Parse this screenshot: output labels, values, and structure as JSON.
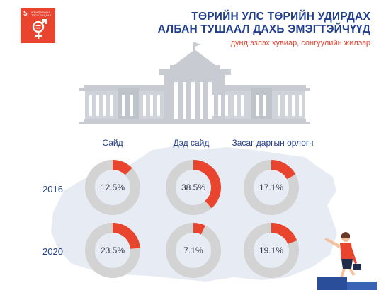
{
  "badge": {
    "number": "5",
    "label": "ЖЕНДЭРИЙН ТЭГШ БАЙДАЛ",
    "color": "#e9442d"
  },
  "header": {
    "title_line1": "ТӨРИЙН УЛС ТӨРИЙН УДИРДАХ",
    "title_line2": "АЛБАН ТУШААЛ ДАХЬ ЭМЭГТЭЙЧҮҮД",
    "subtitle": "дүнд эзлэх хувиар, сонгуулийн жилээр"
  },
  "colors": {
    "accent": "#e9442d",
    "primary": "#223f8c",
    "track": "#d3d3d3"
  },
  "chart_data": {
    "type": "pie",
    "categories": [
      "Сайд",
      "Дэд сайд",
      "Засаг даргын орлогч"
    ],
    "years": [
      "2016",
      "2020"
    ],
    "unit": "%",
    "series": [
      {
        "name": "2016",
        "values": [
          12.5,
          38.5,
          17.1
        ],
        "labels": [
          "12.5%",
          "38.5%",
          "17.1%"
        ]
      },
      {
        "name": "2020",
        "values": [
          23.5,
          7.1,
          19.1
        ],
        "labels": [
          "23.5%",
          "7.1%",
          "19.1%"
        ]
      }
    ]
  }
}
